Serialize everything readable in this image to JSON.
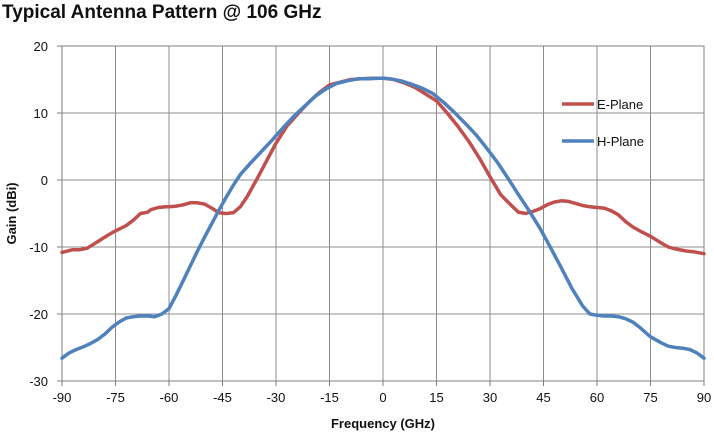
{
  "chart_data": {
    "type": "line",
    "title": "Typical Antenna Pattern @ 106 GHz",
    "xlabel": "Frequency (GHz)",
    "ylabel": "Gain (dBi)",
    "xlim": [
      -90,
      90
    ],
    "ylim": [
      -30,
      20
    ],
    "xticks": [
      -90,
      -75,
      -60,
      -45,
      -30,
      -15,
      0,
      15,
      30,
      45,
      60,
      75,
      90
    ],
    "yticks": [
      -30,
      -20,
      -10,
      0,
      10,
      20
    ],
    "grid": true,
    "legend_position": "right",
    "series": [
      {
        "name": "E-Plane",
        "color": "#c0504d",
        "x": [
          -90,
          -87,
          -85,
          -83,
          -80,
          -77,
          -75,
          -72,
          -70,
          -68,
          -66,
          -65,
          -63,
          -61,
          -60,
          -58,
          -56,
          -54,
          -52,
          -50,
          -48,
          -46,
          -44,
          -42,
          -40,
          -38,
          -35,
          -32,
          -30,
          -27,
          -24,
          -21,
          -18,
          -15,
          -12,
          -9,
          -6,
          -3,
          0,
          3,
          6,
          9,
          12,
          15,
          18,
          21,
          24,
          27,
          30,
          33,
          36,
          38,
          40,
          42,
          44,
          46,
          48,
          50,
          52,
          54,
          56,
          58,
          60,
          62,
          64,
          66,
          68,
          70,
          72,
          75,
          78,
          80,
          82,
          85,
          87,
          90
        ],
        "y": [
          -10.8,
          -10.4,
          -10.4,
          -10.2,
          -9.2,
          -8.2,
          -7.6,
          -6.8,
          -6.0,
          -5.0,
          -4.8,
          -4.4,
          -4.1,
          -4.0,
          -4.0,
          -3.9,
          -3.7,
          -3.4,
          -3.4,
          -3.6,
          -4.2,
          -4.9,
          -5.0,
          -4.9,
          -4.0,
          -2.4,
          0.5,
          3.5,
          5.5,
          8.0,
          9.8,
          11.5,
          13.0,
          14.2,
          14.6,
          15.0,
          15.1,
          15.2,
          15.2,
          15.0,
          14.5,
          13.8,
          12.8,
          11.8,
          10.0,
          8.0,
          5.8,
          3.3,
          0.5,
          -2.2,
          -3.8,
          -4.8,
          -5.0,
          -4.7,
          -4.3,
          -3.7,
          -3.3,
          -3.1,
          -3.2,
          -3.5,
          -3.8,
          -4.0,
          -4.1,
          -4.2,
          -4.6,
          -5.2,
          -6.2,
          -7.0,
          -7.6,
          -8.4,
          -9.4,
          -10.0,
          -10.3,
          -10.6,
          -10.7,
          -11.0
        ]
      },
      {
        "name": "H-Plane",
        "color": "#4f81bd",
        "x": [
          -90,
          -88,
          -86,
          -84,
          -82,
          -80,
          -78,
          -76,
          -74,
          -72,
          -70,
          -68,
          -66,
          -64,
          -62,
          -60,
          -58,
          -56,
          -54,
          -52,
          -50,
          -48,
          -46,
          -44,
          -42,
          -40,
          -37,
          -34,
          -31,
          -28,
          -25,
          -22,
          -19,
          -16,
          -13,
          -10,
          -7,
          -4,
          -1,
          0,
          2,
          5,
          8,
          11,
          14,
          17,
          20,
          23,
          26,
          29,
          32,
          35,
          38,
          41,
          44,
          47,
          50,
          53,
          56,
          58,
          60,
          62,
          64,
          66,
          68,
          70,
          72,
          75,
          78,
          80,
          82,
          84,
          86,
          88,
          90
        ],
        "y": [
          -26.6,
          -25.8,
          -25.3,
          -24.9,
          -24.4,
          -23.8,
          -23.0,
          -22.0,
          -21.2,
          -20.6,
          -20.4,
          -20.3,
          -20.3,
          -20.4,
          -20.0,
          -19.2,
          -17.2,
          -15.0,
          -12.8,
          -10.6,
          -8.5,
          -6.5,
          -4.5,
          -2.6,
          -0.8,
          0.8,
          2.6,
          4.3,
          6.0,
          7.8,
          9.5,
          11.0,
          12.5,
          13.6,
          14.4,
          14.8,
          15.1,
          15.1,
          15.2,
          15.2,
          15.1,
          14.8,
          14.3,
          13.7,
          12.9,
          11.6,
          10.1,
          8.5,
          6.8,
          4.8,
          2.7,
          0.3,
          -2.2,
          -4.6,
          -7.2,
          -10.1,
          -13.1,
          -16.2,
          -18.8,
          -20.0,
          -20.2,
          -20.3,
          -20.3,
          -20.4,
          -20.7,
          -21.2,
          -22.0,
          -23.4,
          -24.3,
          -24.8,
          -25.0,
          -25.1,
          -25.3,
          -25.8,
          -26.6
        ]
      }
    ]
  }
}
